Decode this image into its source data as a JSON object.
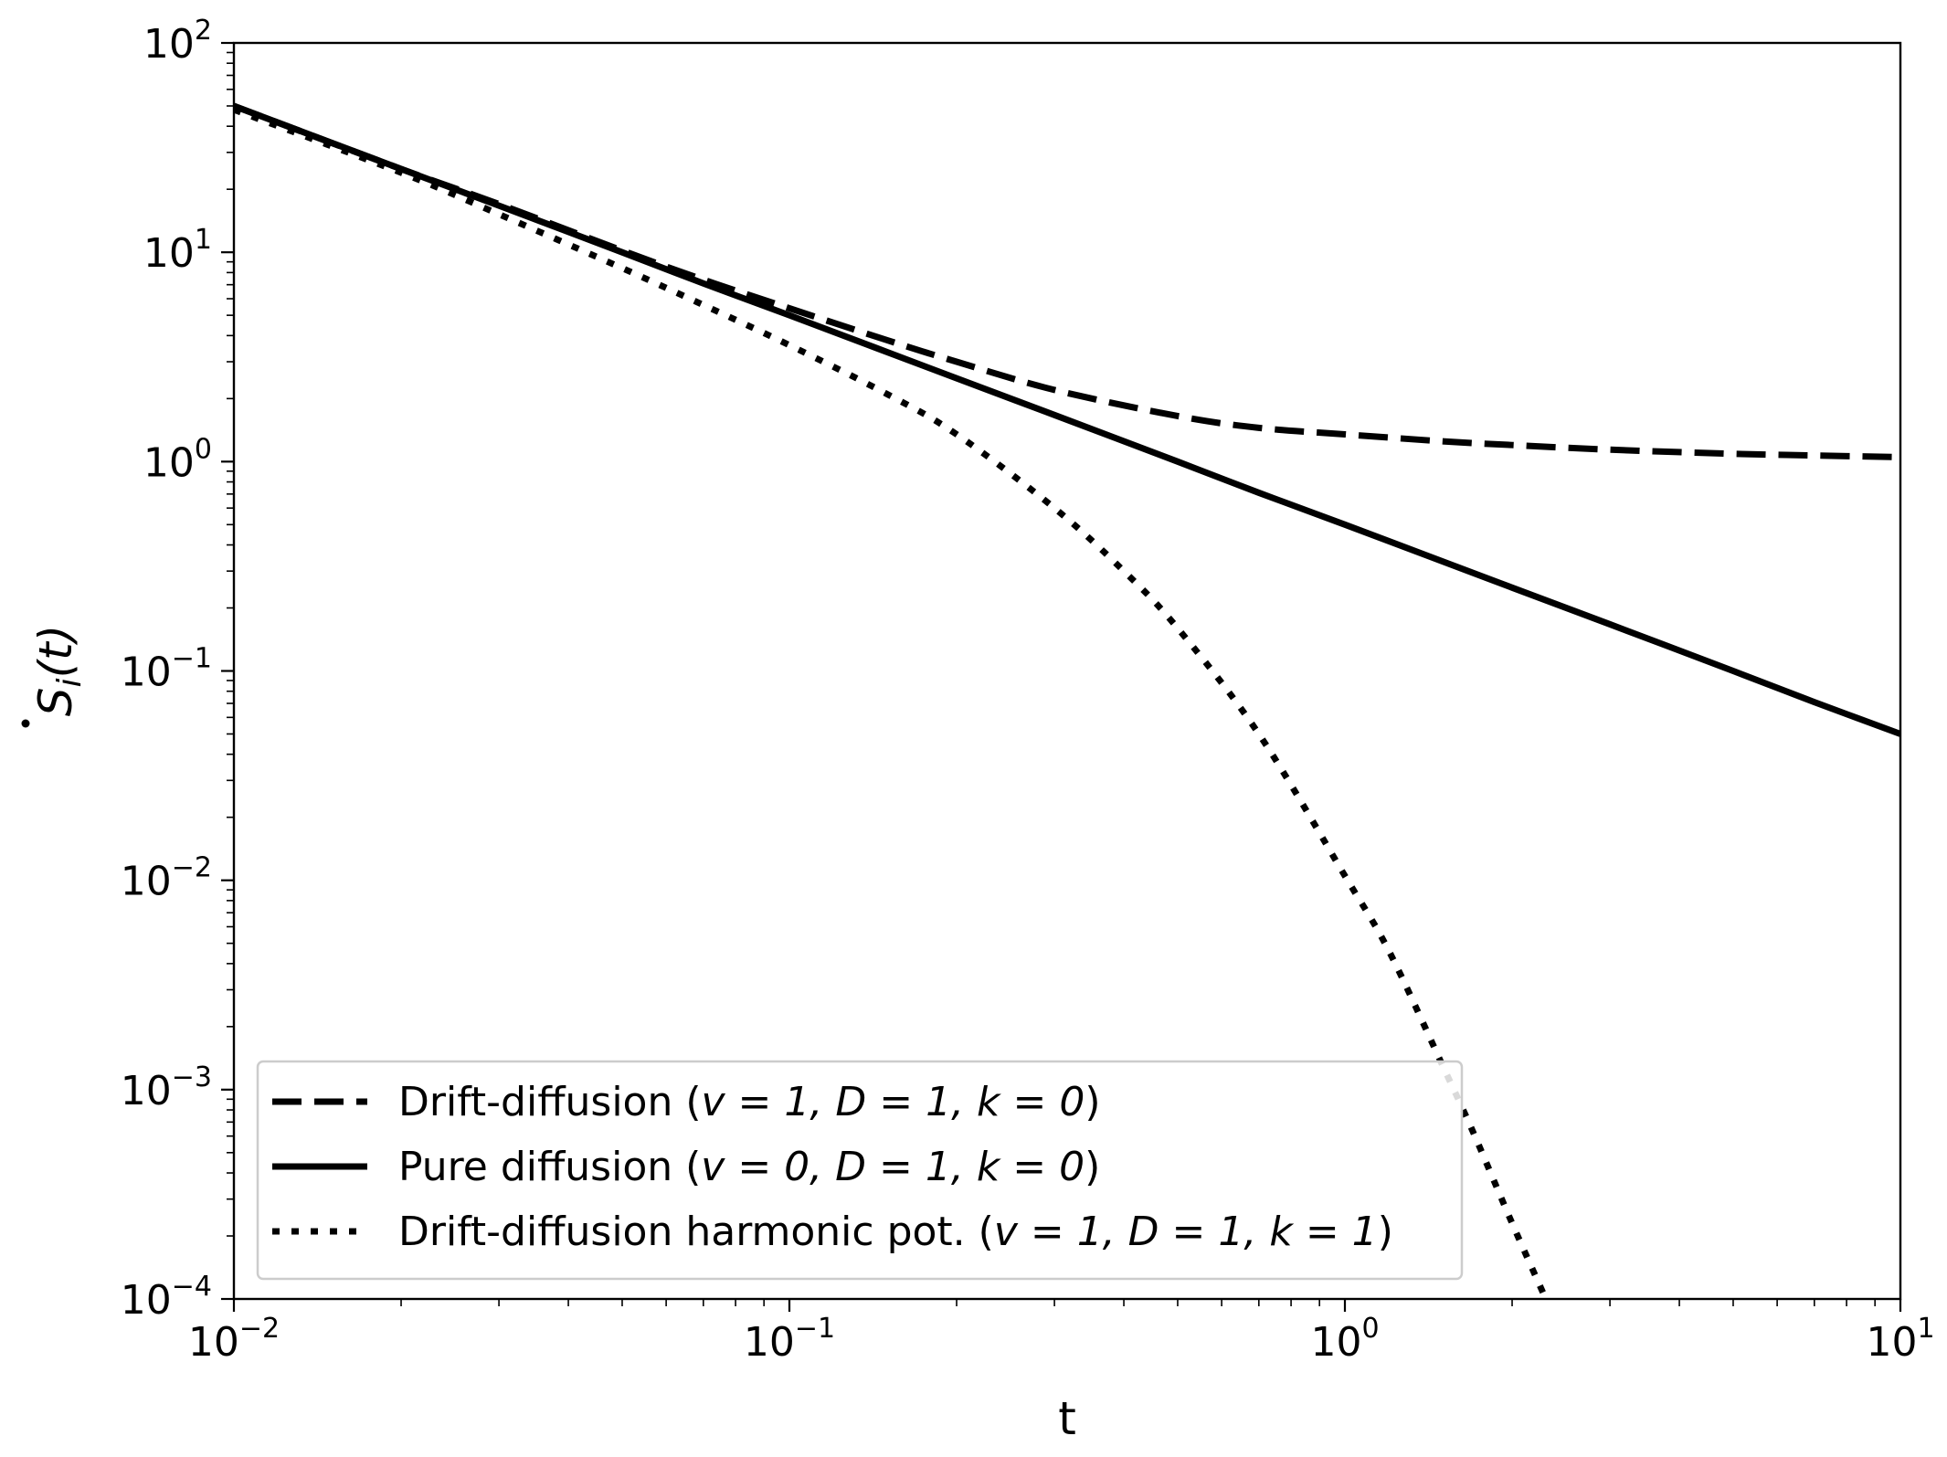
{
  "chart_data": {
    "type": "line",
    "xscale": "log",
    "yscale": "log",
    "xlim": [
      0.01,
      10
    ],
    "ylim": [
      0.0001,
      100
    ],
    "xlabel": "t",
    "ylabel_main": "S",
    "ylabel_sub": "i",
    "ylabel_arg": "(t)",
    "x_ticks": [
      {
        "base": "10",
        "exp": "−2",
        "value": 0.01
      },
      {
        "base": "10",
        "exp": "−1",
        "value": 0.1
      },
      {
        "base": "10",
        "exp": "0",
        "value": 1
      },
      {
        "base": "10",
        "exp": "1",
        "value": 10
      }
    ],
    "y_ticks": [
      {
        "base": "10",
        "exp": "2",
        "value": 100
      },
      {
        "base": "10",
        "exp": "1",
        "value": 10
      },
      {
        "base": "10",
        "exp": "0",
        "value": 1
      },
      {
        "base": "10",
        "exp": "−1",
        "value": 0.1
      },
      {
        "base": "10",
        "exp": "−2",
        "value": 0.01
      },
      {
        "base": "10",
        "exp": "−3",
        "value": 0.001
      },
      {
        "base": "10",
        "exp": "−4",
        "value": 0.0001
      }
    ],
    "grid": false,
    "legend_position": "lower-left",
    "series": [
      {
        "name": "Drift-diffusion (v = 1, D = 1, k = 0)",
        "legend_prefix": "Drift-diffusion (",
        "legend_params": "v = 1, D = 1, k = 0",
        "legend_suffix": ")",
        "style": "dashed",
        "x": [
          0.01,
          0.02,
          0.03,
          0.05,
          0.07,
          0.1,
          0.15,
          0.2,
          0.3,
          0.5,
          0.7,
          1,
          1.5,
          2,
          3,
          5,
          7,
          10
        ],
        "y": [
          50,
          25,
          17,
          10.2,
          7.4,
          5.4,
          3.8,
          3.0,
          2.2,
          1.65,
          1.45,
          1.35,
          1.25,
          1.2,
          1.14,
          1.09,
          1.07,
          1.05
        ]
      },
      {
        "name": "Pure diffusion (v = 0, D = 1, k = 0)",
        "legend_prefix": "Pure diffusion (",
        "legend_params": "v = 0, D = 1, k = 0",
        "legend_suffix": ")",
        "style": "solid",
        "x": [
          0.01,
          0.02,
          0.03,
          0.05,
          0.07,
          0.1,
          0.2,
          0.3,
          0.5,
          0.7,
          1,
          2,
          3,
          5,
          7,
          10
        ],
        "y": [
          50,
          25,
          16.7,
          10,
          7.1,
          5,
          2.5,
          1.67,
          1,
          0.71,
          0.5,
          0.25,
          0.167,
          0.1,
          0.071,
          0.05
        ]
      },
      {
        "name": "Drift-diffusion harmonic pot. (v = 1, D = 1, k = 1)",
        "legend_prefix": "Drift-diffusion harmonic pot. (",
        "legend_params": "v = 1, D = 1, k = 1",
        "legend_suffix": ")",
        "style": "dotted",
        "x": [
          0.01,
          0.02,
          0.03,
          0.05,
          0.07,
          0.1,
          0.15,
          0.2,
          0.3,
          0.4,
          0.5,
          0.7,
          1.0,
          1.2,
          1.5,
          1.7,
          2.0,
          2.3
        ],
        "y": [
          48,
          24,
          15.2,
          8.4,
          5.6,
          3.6,
          2.1,
          1.35,
          0.6,
          0.3,
          0.16,
          0.05,
          0.0105,
          0.0046,
          0.0013,
          0.00063,
          0.00023,
          0.0001
        ]
      }
    ]
  }
}
